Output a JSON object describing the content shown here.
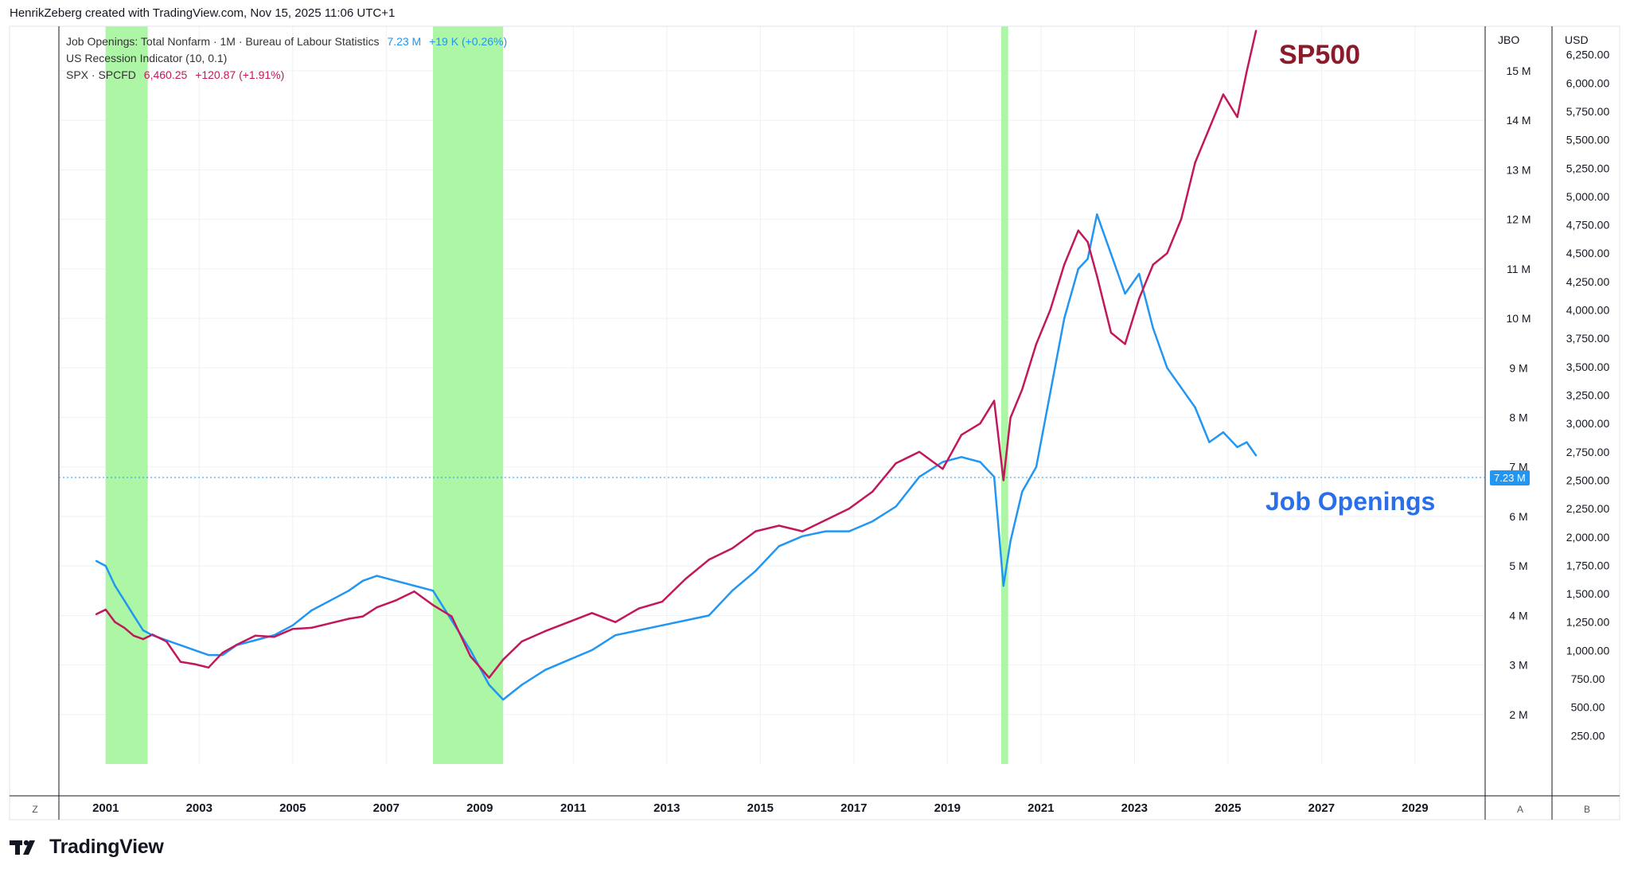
{
  "header": {
    "credit": "HenrikZeberg created with TradingView.com, Nov 15, 2025 11:06 UTC+1"
  },
  "legend": {
    "jbo_name": "Job Openings: Total Nonfarm · 1M · Bureau of Labour Statistics",
    "jbo_value": "7.23 M",
    "jbo_change": "+19 K (+0.26%)",
    "recession_name": "US Recession Indicator (10, 0.1)",
    "spx_name": "SPX · SPCFD",
    "spx_value": "6,460.25",
    "spx_change": "+120.87 (+1.91%)"
  },
  "annotations": {
    "sp500": "SP500",
    "job_openings": "Job Openings"
  },
  "scales": {
    "left_title": "JBO",
    "right_title": "USD",
    "corner_left": "Z",
    "corner_a": "A",
    "corner_b": "B",
    "last_value_tag": "7.23 M"
  },
  "footer": {
    "brand": "TradingView"
  },
  "colors": {
    "job_openings": "#2196f3",
    "spx": "#c2185b",
    "recession": "#a8f5a0",
    "sp500_label": "#8b1a2b",
    "job_label": "#2a6ee8"
  },
  "chart_data": {
    "type": "line",
    "x_ticks": [
      "2001",
      "2003",
      "2005",
      "2007",
      "2009",
      "2011",
      "2013",
      "2015",
      "2017",
      "2019",
      "2021",
      "2023",
      "2025",
      "2027",
      "2029"
    ],
    "jbo_ticks": [
      "2 M",
      "3 M",
      "4 M",
      "5 M",
      "6 M",
      "7 M",
      "8 M",
      "9 M",
      "10 M",
      "11 M",
      "12 M",
      "13 M",
      "14 M",
      "15 M"
    ],
    "usd_ticks": [
      "250.00",
      "500.00",
      "750.00",
      "1,000.00",
      "1,250.00",
      "1,500.00",
      "1,750.00",
      "2,000.00",
      "2,250.00",
      "2,500.00",
      "2,750.00",
      "3,000.00",
      "3,250.00",
      "3,500.00",
      "3,750.00",
      "4,000.00",
      "4,250.00",
      "4,500.00",
      "4,750.00",
      "5,000.00",
      "5,250.00",
      "5,500.00",
      "5,750.00",
      "6,000.00",
      "6,250.00"
    ],
    "recessions": [
      {
        "start": 2001.0,
        "end": 2001.9
      },
      {
        "start": 2008.0,
        "end": 2009.5
      },
      {
        "start": 2020.15,
        "end": 2020.3
      }
    ],
    "series": [
      {
        "name": "Job Openings: Total Nonfarm",
        "axis": "JBO (millions)",
        "x": [
          2000.8,
          2001.0,
          2001.2,
          2001.4,
          2001.6,
          2001.8,
          2002.0,
          2002.3,
          2002.6,
          2002.9,
          2003.2,
          2003.5,
          2003.8,
          2004.2,
          2004.6,
          2005.0,
          2005.4,
          2005.8,
          2006.2,
          2006.5,
          2006.8,
          2007.2,
          2007.6,
          2008.0,
          2008.4,
          2008.8,
          2009.2,
          2009.5,
          2009.9,
          2010.4,
          2010.9,
          2011.4,
          2011.9,
          2012.4,
          2012.9,
          2013.4,
          2013.9,
          2014.4,
          2014.9,
          2015.4,
          2015.9,
          2016.4,
          2016.9,
          2017.4,
          2017.9,
          2018.4,
          2018.9,
          2019.3,
          2019.7,
          2020.0,
          2020.2,
          2020.35,
          2020.6,
          2020.9,
          2021.2,
          2021.5,
          2021.8,
          2022.0,
          2022.2,
          2022.5,
          2022.8,
          2023.1,
          2023.4,
          2023.7,
          2024.0,
          2024.3,
          2024.6,
          2024.9,
          2025.2,
          2025.4,
          2025.6
        ],
        "values": [
          5.1,
          5.0,
          4.6,
          4.3,
          4.0,
          3.7,
          3.6,
          3.5,
          3.4,
          3.3,
          3.2,
          3.2,
          3.4,
          3.5,
          3.6,
          3.8,
          4.1,
          4.3,
          4.5,
          4.7,
          4.8,
          4.7,
          4.6,
          4.5,
          3.9,
          3.3,
          2.6,
          2.3,
          2.6,
          2.9,
          3.1,
          3.3,
          3.6,
          3.7,
          3.8,
          3.9,
          4.0,
          4.5,
          4.9,
          5.4,
          5.6,
          5.7,
          5.7,
          5.9,
          6.2,
          6.8,
          7.1,
          7.2,
          7.1,
          6.8,
          4.6,
          5.5,
          6.5,
          7.0,
          8.5,
          10.0,
          11.0,
          11.2,
          12.1,
          11.3,
          10.5,
          10.9,
          9.8,
          9.0,
          8.6,
          8.2,
          7.5,
          7.7,
          7.4,
          7.5,
          7.23
        ]
      },
      {
        "name": "SPX · SPCFD",
        "axis": "USD",
        "x": [
          2000.8,
          2001.0,
          2001.2,
          2001.4,
          2001.6,
          2001.8,
          2002.0,
          2002.3,
          2002.6,
          2002.9,
          2003.2,
          2003.5,
          2003.8,
          2004.2,
          2004.6,
          2005.0,
          2005.4,
          2005.8,
          2006.2,
          2006.5,
          2006.8,
          2007.2,
          2007.6,
          2008.0,
          2008.4,
          2008.8,
          2009.2,
          2009.5,
          2009.9,
          2010.4,
          2010.9,
          2011.4,
          2011.9,
          2012.4,
          2012.9,
          2013.4,
          2013.9,
          2014.4,
          2014.9,
          2015.4,
          2015.9,
          2016.4,
          2016.9,
          2017.4,
          2017.9,
          2018.4,
          2018.9,
          2019.3,
          2019.7,
          2020.0,
          2020.2,
          2020.35,
          2020.6,
          2020.9,
          2021.2,
          2021.5,
          2021.8,
          2022.0,
          2022.2,
          2022.5,
          2022.8,
          2023.1,
          2023.4,
          2023.7,
          2024.0,
          2024.3,
          2024.6,
          2024.9,
          2025.2,
          2025.4,
          2025.6
        ],
        "values": [
          1320,
          1360,
          1250,
          1200,
          1130,
          1100,
          1140,
          1080,
          900,
          880,
          850,
          980,
          1050,
          1130,
          1120,
          1190,
          1200,
          1240,
          1280,
          1300,
          1380,
          1440,
          1520,
          1400,
          1300,
          950,
          760,
          920,
          1080,
          1170,
          1250,
          1330,
          1250,
          1370,
          1430,
          1630,
          1800,
          1900,
          2050,
          2100,
          2050,
          2150,
          2250,
          2400,
          2650,
          2750,
          2600,
          2900,
          3000,
          3200,
          2500,
          3050,
          3300,
          3700,
          4000,
          4400,
          4700,
          4600,
          4300,
          3800,
          3700,
          4100,
          4400,
          4500,
          4800,
          5300,
          5600,
          5900,
          5700,
          6100,
          6460
        ]
      }
    ],
    "jbo_ylim": [
      1.0,
      15.9
    ],
    "usd_ylim": [
      0,
      6500
    ],
    "xlim": [
      2000.0,
      2030.5
    ]
  }
}
